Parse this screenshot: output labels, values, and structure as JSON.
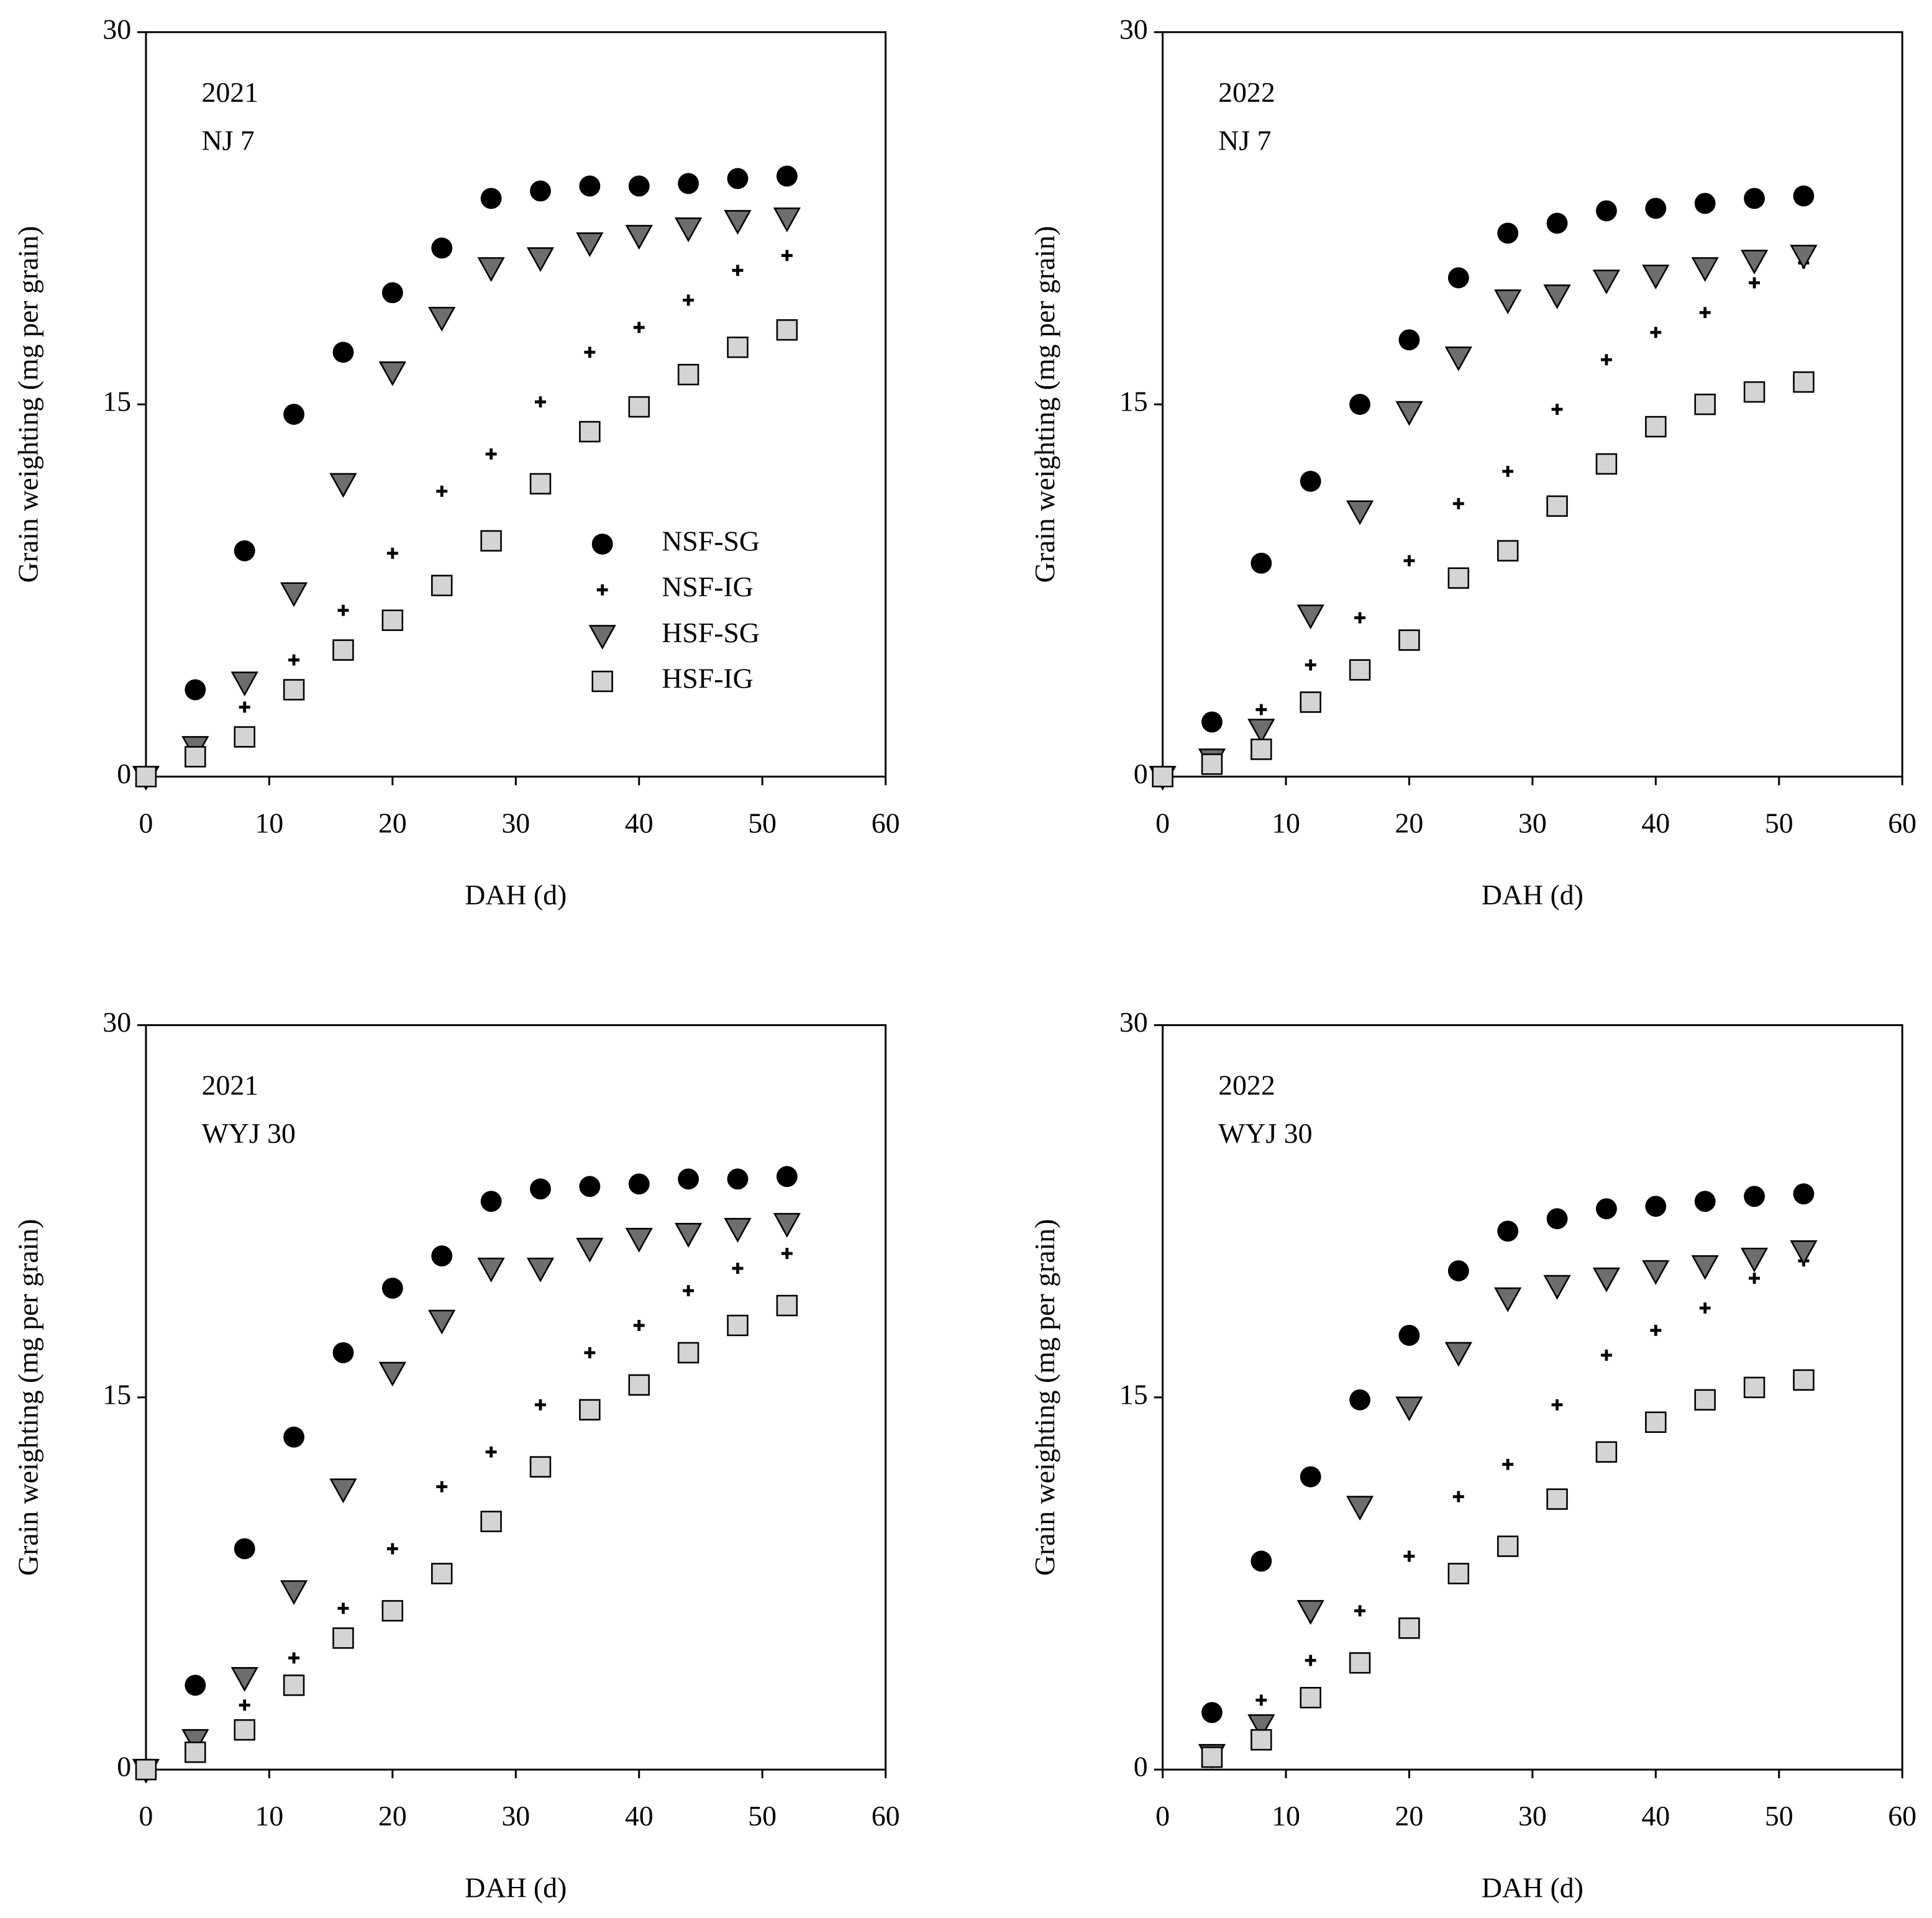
{
  "chart_data": [
    {
      "type": "scatter",
      "annotations": [
        "2021",
        "NJ 7"
      ],
      "x_label": "DAH (d)",
      "y_label": "Grain weighting (mg per grain)",
      "xlim": [
        0,
        60
      ],
      "ylim": [
        0,
        30
      ],
      "xticks": [
        0,
        10,
        20,
        30,
        40,
        50,
        60
      ],
      "yticks": [
        0,
        15,
        30
      ],
      "legend": "center right",
      "x": [
        0,
        4,
        8,
        12,
        16,
        20,
        24,
        28,
        32,
        36,
        40,
        44,
        48,
        52
      ],
      "series": [
        {
          "name": "NSF-SG",
          "marker": "circle",
          "color": "#000000",
          "values": [
            0,
            3.5,
            9.1,
            14.6,
            17.1,
            19.5,
            21.3,
            23.3,
            23.6,
            23.8,
            23.8,
            23.9,
            24.1,
            24.2
          ]
        },
        {
          "name": "NSF-IG",
          "marker": "plus",
          "color": "#000000",
          "values": [
            0,
            1.2,
            2.8,
            4.7,
            6.7,
            9.0,
            11.5,
            13.0,
            15.1,
            17.1,
            18.1,
            19.2,
            20.4,
            21.0
          ]
        },
        {
          "name": "HSF-SG",
          "marker": "triangle",
          "color": "#6e6e6e",
          "values": [
            0,
            1.2,
            3.8,
            7.4,
            11.8,
            16.3,
            18.5,
            20.5,
            20.9,
            21.5,
            21.8,
            22.1,
            22.4,
            22.5
          ]
        },
        {
          "name": "HSF-IG",
          "marker": "square",
          "color": "#d4d4d4",
          "values": [
            0,
            0.8,
            1.6,
            3.5,
            5.1,
            6.3,
            7.7,
            9.5,
            11.8,
            13.9,
            14.9,
            16.2,
            17.3,
            18.0
          ]
        }
      ]
    },
    {
      "type": "scatter",
      "annotations": [
        "2022",
        "NJ 7"
      ],
      "x_label": "DAH (d)",
      "y_label": "Grain weighting (mg per grain)",
      "xlim": [
        0,
        60
      ],
      "ylim": [
        0,
        30
      ],
      "xticks": [
        0,
        10,
        20,
        30,
        40,
        50,
        60
      ],
      "yticks": [
        0,
        15,
        30
      ],
      "x": [
        0,
        4,
        8,
        12,
        16,
        20,
        24,
        28,
        32,
        36,
        40,
        44,
        48,
        52
      ],
      "series": [
        {
          "marker": "circle",
          "color": "#000000",
          "values": [
            0,
            2.2,
            8.6,
            11.9,
            15.0,
            17.6,
            20.1,
            21.9,
            22.3,
            22.8,
            22.9,
            23.1,
            23.3,
            23.4
          ]
        },
        {
          "marker": "plus",
          "color": "#000000",
          "values": [
            0,
            0.8,
            2.7,
            4.5,
            6.4,
            8.7,
            11.0,
            12.3,
            14.8,
            16.8,
            17.9,
            18.7,
            19.9,
            20.7
          ]
        },
        {
          "marker": "triangle",
          "color": "#6e6e6e",
          "values": [
            0,
            0.7,
            1.9,
            6.5,
            10.7,
            14.7,
            16.9,
            19.2,
            19.4,
            20.0,
            20.2,
            20.5,
            20.8,
            21.0
          ]
        },
        {
          "marker": "square",
          "color": "#d4d4d4",
          "values": [
            0,
            0.5,
            1.1,
            3.0,
            4.3,
            5.5,
            8.0,
            9.1,
            10.9,
            12.6,
            14.1,
            15.0,
            15.5,
            15.9
          ]
        }
      ]
    },
    {
      "type": "scatter",
      "annotations": [
        "2021",
        "WYJ 30"
      ],
      "x_label": "DAH (d)",
      "y_label": "Grain weighting (mg per grain)",
      "xlim": [
        0,
        60
      ],
      "ylim": [
        0,
        30
      ],
      "xticks": [
        0,
        10,
        20,
        30,
        40,
        50,
        60
      ],
      "yticks": [
        0,
        15,
        30
      ],
      "x": [
        0,
        4,
        8,
        12,
        16,
        20,
        24,
        28,
        32,
        36,
        40,
        44,
        48,
        52
      ],
      "series": [
        {
          "marker": "circle",
          "color": "#000000",
          "values": [
            0,
            3.4,
            8.9,
            13.4,
            16.8,
            19.4,
            20.7,
            22.9,
            23.4,
            23.5,
            23.6,
            23.8,
            23.8,
            23.9
          ]
        },
        {
          "marker": "plus",
          "color": "#000000",
          "values": [
            0,
            1.2,
            2.6,
            4.5,
            6.5,
            8.9,
            11.4,
            12.8,
            14.7,
            16.8,
            17.9,
            19.3,
            20.2,
            20.8
          ]
        },
        {
          "marker": "triangle",
          "color": "#6e6e6e",
          "values": [
            0,
            1.2,
            3.7,
            7.2,
            11.3,
            16.0,
            18.1,
            20.2,
            20.2,
            21.0,
            21.4,
            21.6,
            21.8,
            22.0
          ]
        },
        {
          "marker": "square",
          "color": "#d4d4d4",
          "values": [
            0,
            0.7,
            1.6,
            3.4,
            5.3,
            6.4,
            7.9,
            10.0,
            12.2,
            14.5,
            15.5,
            16.8,
            17.9,
            18.7
          ]
        }
      ]
    },
    {
      "type": "scatter",
      "annotations": [
        "2022",
        "WYJ 30"
      ],
      "x_label": "DAH (d)",
      "y_label": "Grain weighting (mg per grain)",
      "xlim": [
        0,
        60
      ],
      "ylim": [
        0,
        30
      ],
      "xticks": [
        0,
        10,
        20,
        30,
        40,
        50,
        60
      ],
      "yticks": [
        0,
        15,
        30
      ],
      "x": [
        4,
        8,
        12,
        16,
        20,
        24,
        28,
        32,
        36,
        40,
        44,
        48,
        52
      ],
      "series": [
        {
          "marker": "circle",
          "color": "#000000",
          "values": [
            2.3,
            8.4,
            11.8,
            14.9,
            17.5,
            20.1,
            21.7,
            22.2,
            22.6,
            22.7,
            22.9,
            23.1,
            23.2
          ]
        },
        {
          "marker": "plus",
          "color": "#000000",
          "values": [
            0.7,
            2.8,
            4.4,
            6.4,
            8.6,
            11.0,
            12.3,
            14.7,
            16.7,
            17.7,
            18.6,
            19.8,
            20.5
          ]
        },
        {
          "marker": "triangle",
          "color": "#6e6e6e",
          "values": [
            0.6,
            1.8,
            6.4,
            10.6,
            14.6,
            16.8,
            19.0,
            19.5,
            19.8,
            20.1,
            20.3,
            20.6,
            20.9
          ]
        },
        {
          "marker": "square",
          "color": "#d4d4d4",
          "values": [
            0.5,
            1.2,
            2.9,
            4.3,
            5.7,
            7.9,
            9.0,
            10.9,
            12.8,
            14.0,
            14.9,
            15.4,
            15.7
          ]
        }
      ]
    }
  ]
}
